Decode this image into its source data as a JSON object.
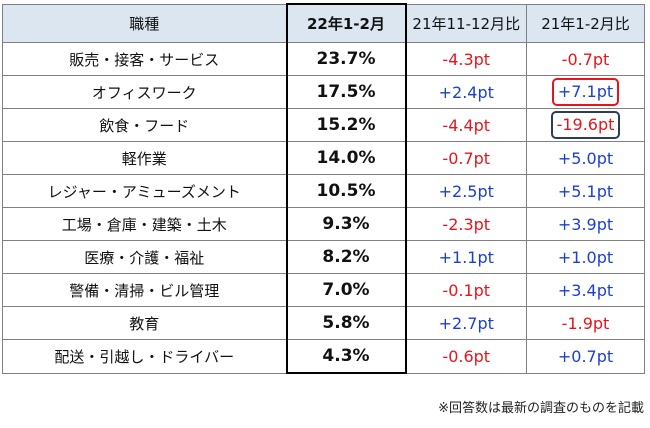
{
  "table": {
    "headers": {
      "job": "職種",
      "current": "22年1-2月",
      "vs_prev_period": "21年11-12月比",
      "vs_prev_year": "21年1-2月比"
    },
    "rows": [
      {
        "job": "販売・接客・サービス",
        "current": "23.7%",
        "vs_prev_period": "-4.3pt",
        "vs_prev_year": "-0.7pt"
      },
      {
        "job": "オフィスワーク",
        "current": "17.5%",
        "vs_prev_period": "+2.4pt",
        "vs_prev_year": "+7.1pt",
        "vs_prev_year_box": "red"
      },
      {
        "job": "飲食・フード",
        "current": "15.2%",
        "vs_prev_period": "-4.4pt",
        "vs_prev_year": "-19.6pt",
        "vs_prev_year_box": "navy"
      },
      {
        "job": "軽作業",
        "current": "14.0%",
        "vs_prev_period": "-0.7pt",
        "vs_prev_year": "+5.0pt"
      },
      {
        "job": "レジャー・アミューズメント",
        "current": "10.5%",
        "vs_prev_period": "+2.5pt",
        "vs_prev_year": "+5.1pt"
      },
      {
        "job": "工場・倉庫・建築・土木",
        "current": "9.3%",
        "vs_prev_period": "-2.3pt",
        "vs_prev_year": "+3.9pt"
      },
      {
        "job": "医療・介護・福祉",
        "current": "8.2%",
        "vs_prev_period": "+1.1pt",
        "vs_prev_year": "+1.0pt"
      },
      {
        "job": "警備・清掃・ビル管理",
        "current": "7.0%",
        "vs_prev_period": "-0.1pt",
        "vs_prev_year": "+3.4pt"
      },
      {
        "job": "教育",
        "current": "5.8%",
        "vs_prev_period": "+2.7pt",
        "vs_prev_year": "-1.9pt"
      },
      {
        "job": "配送・引越し・ドライバー",
        "current": "4.3%",
        "vs_prev_period": "-0.6pt",
        "vs_prev_year": "+0.7pt"
      }
    ]
  },
  "note": "※回答数は最新の調査のものを記載",
  "colors": {
    "header_bg": "#dce6f1",
    "positive": "#1a3fd6",
    "negative": "#e8141c",
    "highlight_red": "#e8141c",
    "highlight_navy": "#2e3e52"
  }
}
